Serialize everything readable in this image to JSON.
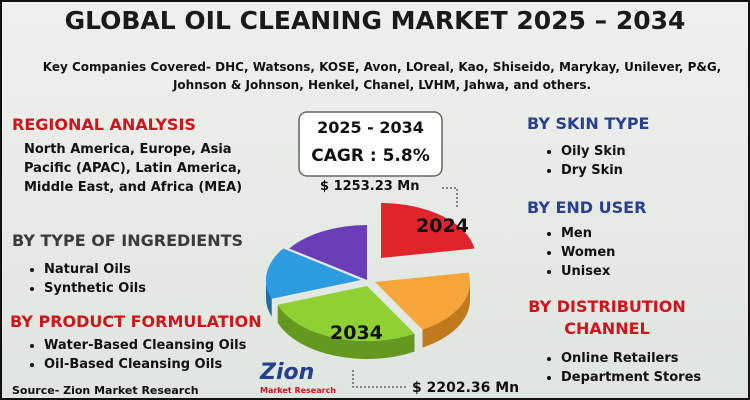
{
  "header": {
    "title": "GLOBAL OIL CLEANING MARKET 2025 – 2034",
    "companies": "Key Companies Covered- DHC, Watsons, KOSE, Avon, LOreal, Kao, Shiseido, Marykay, Unilever, P&G, Johnson & Johnson, Henkel, Chanel, LVHM, Jahwa, and others."
  },
  "regional": {
    "heading": "REGIONAL ANALYSIS",
    "text": "North America, Europe, Asia Pacific (APAC), Latin America, Middle East, and Africa (MEA)"
  },
  "ingredients": {
    "heading": "BY TYPE OF INGREDIENTS",
    "items": [
      "Natural Oils",
      "Synthetic Oils"
    ]
  },
  "formulation": {
    "heading": "BY PRODUCT FORMULATION",
    "items": [
      "Water-Based Cleansing Oils",
      "Oil-Based Cleansing Oils"
    ]
  },
  "skin": {
    "heading": "BY SKIN TYPE",
    "items": [
      "Oily Skin",
      "Dry Skin"
    ]
  },
  "user": {
    "heading": "BY END USER",
    "items": [
      "Men",
      "Women",
      "Unisex"
    ]
  },
  "channel": {
    "heading": "BY DISTRIBUTION CHANNEL",
    "items": [
      "Online Retailers",
      "Department Stores"
    ]
  },
  "center": {
    "period": "2025 - 2034",
    "cagr": "CAGR : 5.8%",
    "start_value": "$ 1253.23 Mn",
    "start_year": "2024",
    "end_year": "2034",
    "end_value": "$ 2202.36 Mn",
    "logo_main": "Zion",
    "logo_sub": "Market Research"
  },
  "source": "Source- Zion Market Research"
}
